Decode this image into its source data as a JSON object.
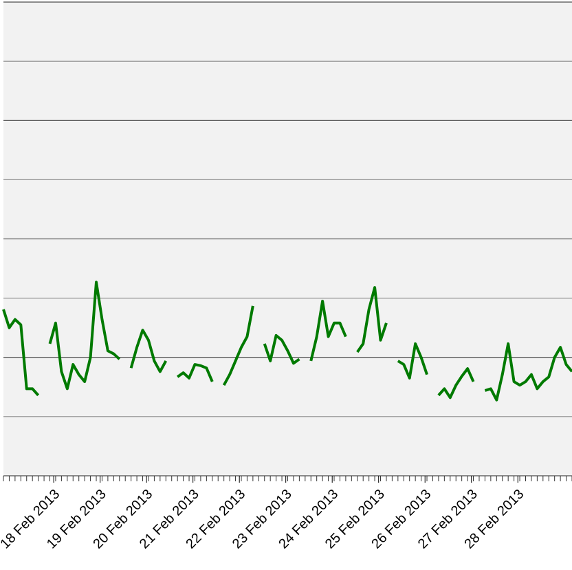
{
  "chart_data": {
    "type": "line",
    "x": [
      -26,
      -23,
      -20,
      -17,
      -14,
      -11,
      -8,
      -5,
      -2,
      1,
      4,
      7,
      10,
      13,
      16,
      19,
      22,
      25,
      28,
      31,
      34,
      37,
      40,
      43,
      46,
      49,
      52,
      55,
      58,
      61,
      64,
      67,
      70,
      73,
      76,
      79,
      82,
      85,
      88,
      91,
      94,
      97,
      100,
      103,
      106,
      109,
      112,
      115,
      118,
      121,
      124,
      127,
      130,
      133,
      136,
      139,
      142,
      145,
      148,
      151,
      154,
      157,
      160,
      163,
      166,
      169,
      172,
      175,
      178,
      181,
      184,
      187,
      190,
      193,
      196,
      199,
      202,
      205,
      208,
      211,
      214,
      217,
      220,
      223,
      226,
      229,
      232,
      235,
      238,
      241,
      244,
      247,
      250,
      253,
      256,
      259,
      262,
      265,
      268
    ],
    "series": [
      {
        "color": "#007a00",
        "values": [
          2.81,
          2.5,
          2.64,
          2.55,
          1.47,
          1.47,
          1.36,
          null,
          2.23,
          2.58,
          1.76,
          1.47,
          1.88,
          1.71,
          1.59,
          2.0,
          3.27,
          2.64,
          2.11,
          2.06,
          1.97,
          null,
          1.82,
          2.17,
          2.46,
          2.29,
          1.94,
          1.76,
          1.94,
          null,
          1.67,
          1.74,
          1.65,
          1.88,
          1.86,
          1.82,
          1.59,
          null,
          1.53,
          1.71,
          1.94,
          2.17,
          2.35,
          2.87,
          null,
          2.23,
          1.94,
          2.37,
          2.29,
          2.11,
          1.9,
          1.97,
          null,
          1.94,
          2.35,
          2.95,
          2.35,
          2.58,
          2.58,
          2.35,
          null,
          2.09,
          2.23,
          2.81,
          3.18,
          2.29,
          2.58,
          null,
          1.94,
          1.88,
          1.65,
          2.23,
          2.0,
          1.71,
          null,
          1.36,
          1.47,
          1.32,
          1.53,
          1.68,
          1.81,
          1.59,
          null,
          1.44,
          1.47,
          1.28,
          1.71,
          2.23,
          1.59,
          1.53,
          1.59,
          1.71,
          1.47,
          1.59,
          1.67,
          2.0,
          2.17,
          1.88,
          1.76
        ]
      }
    ],
    "xlim": [
      -26,
      268
    ],
    "xticks": [
      {
        "value": 0,
        "label": "18 Feb 2013"
      },
      {
        "value": 24,
        "label": "19 Feb 2013"
      },
      {
        "value": 48,
        "label": "20 Feb 2013"
      },
      {
        "value": 72,
        "label": "21 Feb 2013"
      },
      {
        "value": 96,
        "label": "22 Feb 2013"
      },
      {
        "value": 120,
        "label": "23 Feb 2013"
      },
      {
        "value": 144,
        "label": "24 Feb 2013"
      },
      {
        "value": 168,
        "label": "25 Feb 2013"
      },
      {
        "value": 192,
        "label": "26 Feb 2013"
      },
      {
        "value": 216,
        "label": "27 Feb 2013"
      },
      {
        "value": 240,
        "label": "28 Feb 2013"
      }
    ],
    "ylim": [
      0,
      8
    ],
    "yticks": [
      0,
      1,
      2,
      3,
      4,
      5,
      6,
      7,
      8
    ],
    "grid": true
  }
}
